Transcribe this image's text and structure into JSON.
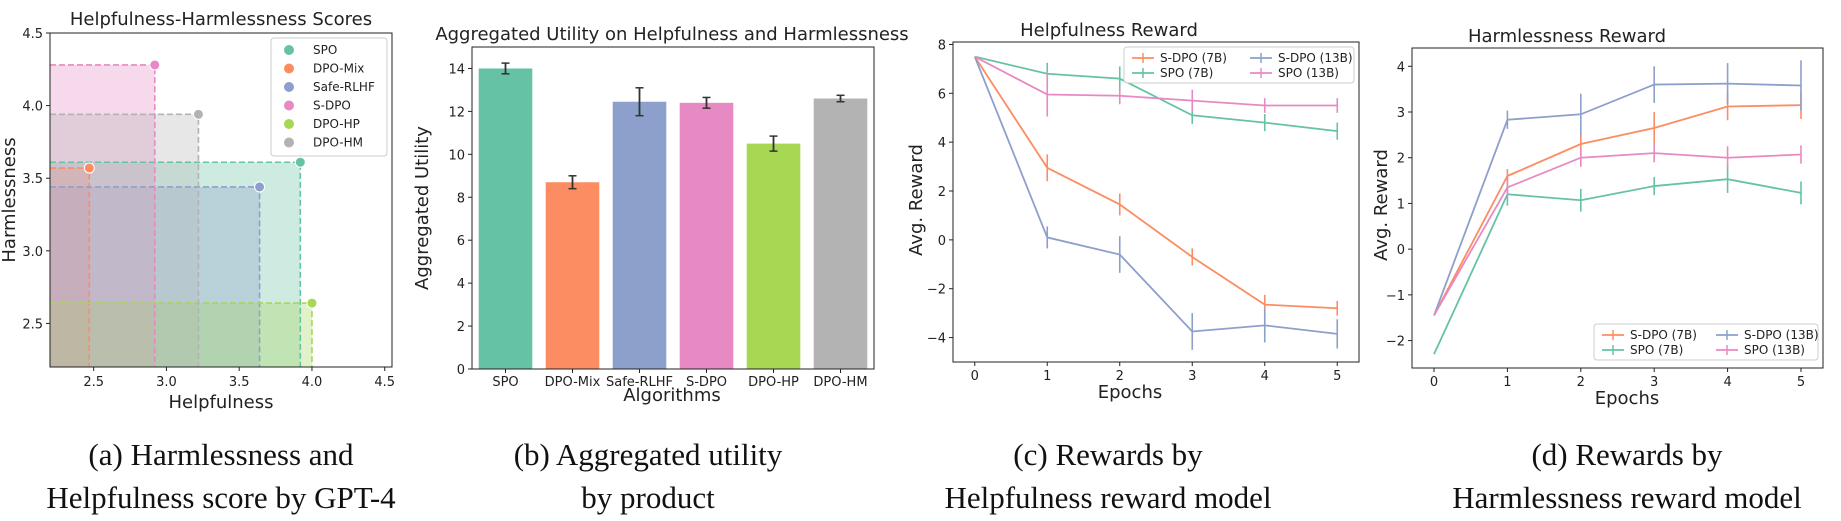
{
  "colors": {
    "SPO": "#66c2a5",
    "DPO-Mix": "#fc8d62",
    "Safe-RLHF": "#8da0cb",
    "S-DPO": "#e78ac3",
    "DPO-HP": "#a6d854",
    "DPO-HM": "#b3b3b3",
    "S-DPO (7B)": "#fc8d62",
    "SPO (7B)": "#66c2a5",
    "S-DPO (13B)": "#8da0cb",
    "SPO (13B)": "#e78ac3"
  },
  "chart_data": [
    {
      "id": "a",
      "type": "scatter",
      "title": "Helpfulness-Harmlessness Scores",
      "xlabel": "Helpfulness",
      "ylabel": "Harmlessness",
      "xlim": [
        2.2,
        4.55
      ],
      "ylim": [
        2.2,
        4.5
      ],
      "xticks": [
        "2.5",
        "3.0",
        "3.5",
        "4.0",
        "4.5"
      ],
      "yticks": [
        "2.5",
        "3.0",
        "3.5",
        "4.0",
        "4.5"
      ],
      "legend": "top-right",
      "points": [
        {
          "name": "SPO",
          "x": 3.92,
          "y": 3.61
        },
        {
          "name": "DPO-Mix",
          "x": 2.47,
          "y": 3.57
        },
        {
          "name": "Safe-RLHF",
          "x": 3.64,
          "y": 3.44
        },
        {
          "name": "S-DPO",
          "x": 2.92,
          "y": 4.28
        },
        {
          "name": "DPO-HP",
          "x": 4.0,
          "y": 2.64
        },
        {
          "name": "DPO-HM",
          "x": 3.22,
          "y": 3.94
        }
      ],
      "caption": [
        "(a) Harmlessness and",
        "Helpfulness score by GPT-4"
      ]
    },
    {
      "id": "b",
      "type": "bar",
      "title": "Aggregated Utility on Helpfulness and Harmlessness",
      "xlabel": "Algorithms",
      "ylabel": "Aggregated Utility",
      "ylim": [
        0,
        15
      ],
      "yticks": [
        "0",
        "2",
        "4",
        "6",
        "8",
        "10",
        "12",
        "14"
      ],
      "categories": [
        "SPO",
        "DPO-Mix",
        "Safe-RLHF",
        "S-DPO",
        "DPO-HP",
        "DPO-HM"
      ],
      "values": [
        14.0,
        8.7,
        12.45,
        12.4,
        10.5,
        12.6
      ],
      "errors": [
        0.25,
        0.3,
        0.65,
        0.25,
        0.35,
        0.15
      ],
      "caption": [
        "(b) Aggregated utility",
        "by product"
      ]
    },
    {
      "id": "c",
      "type": "line",
      "title": "Helpfulness Reward",
      "xlabel": "Epochs",
      "ylabel": "Avg. Reward",
      "xlim": [
        -0.3,
        5.3
      ],
      "ylim": [
        -5,
        8.1
      ],
      "x": [
        0,
        1,
        2,
        3,
        4,
        5
      ],
      "xticks": [
        "0",
        "1",
        "2",
        "3",
        "4",
        "5"
      ],
      "yticks": [
        "−4",
        "−2",
        "0",
        "2",
        "4",
        "6",
        "8"
      ],
      "legend": "top-right",
      "series": [
        {
          "name": "S-DPO (7B)",
          "values": [
            7.5,
            2.95,
            1.45,
            -0.7,
            -2.65,
            -2.8
          ],
          "errors": [
            0,
            0.55,
            0.45,
            0.35,
            0.4,
            0.3
          ]
        },
        {
          "name": "SPO (7B)",
          "values": [
            7.5,
            6.8,
            6.6,
            5.1,
            4.8,
            4.45
          ],
          "errors": [
            0,
            0.45,
            0.5,
            0.35,
            0.35,
            0.35
          ]
        },
        {
          "name": "S-DPO (13B)",
          "values": [
            7.5,
            0.1,
            -0.6,
            -3.75,
            -3.5,
            -3.85
          ],
          "errors": [
            0,
            0.45,
            0.75,
            0.75,
            0.7,
            0.6
          ]
        },
        {
          "name": "SPO (13B)",
          "values": [
            7.5,
            5.95,
            5.9,
            5.7,
            5.5,
            5.5
          ],
          "errors": [
            0,
            0.9,
            0.35,
            0.45,
            0.3,
            0.3
          ]
        }
      ],
      "caption": [
        "(c) Rewards by",
        "Helpfulness reward model"
      ]
    },
    {
      "id": "d",
      "type": "line",
      "title": "Harmlessness Reward",
      "xlabel": "Epochs",
      "ylabel": "Avg. Reward",
      "xlim": [
        -0.3,
        5.3
      ],
      "ylim": [
        -2.6,
        4.4
      ],
      "x": [
        0,
        1,
        2,
        3,
        4,
        5
      ],
      "xticks": [
        "0",
        "1",
        "2",
        "3",
        "4",
        "5"
      ],
      "yticks": [
        "−2",
        "−1",
        "0",
        "1",
        "2",
        "3",
        "4"
      ],
      "legend": "bottom-right",
      "series": [
        {
          "name": "S-DPO (7B)",
          "values": [
            -1.45,
            1.6,
            2.3,
            2.65,
            3.12,
            3.15
          ],
          "errors": [
            0,
            0.15,
            0.25,
            0.35,
            0.3,
            0.3
          ]
        },
        {
          "name": "SPO (7B)",
          "values": [
            -2.3,
            1.2,
            1.07,
            1.38,
            1.53,
            1.23
          ],
          "errors": [
            0,
            0.25,
            0.25,
            0.2,
            0.3,
            0.25
          ]
        },
        {
          "name": "S-DPO (13B)",
          "values": [
            -1.45,
            2.83,
            2.95,
            3.6,
            3.62,
            3.58
          ],
          "errors": [
            0,
            0.2,
            0.45,
            0.4,
            0.45,
            0.55
          ]
        },
        {
          "name": "SPO (13B)",
          "values": [
            -1.45,
            1.35,
            2.0,
            2.1,
            2.0,
            2.07
          ],
          "errors": [
            0,
            0.2,
            0.2,
            0.2,
            0.25,
            0.2
          ]
        }
      ],
      "caption": [
        "(d) Rewards by",
        "Harmlessness reward model"
      ]
    }
  ]
}
